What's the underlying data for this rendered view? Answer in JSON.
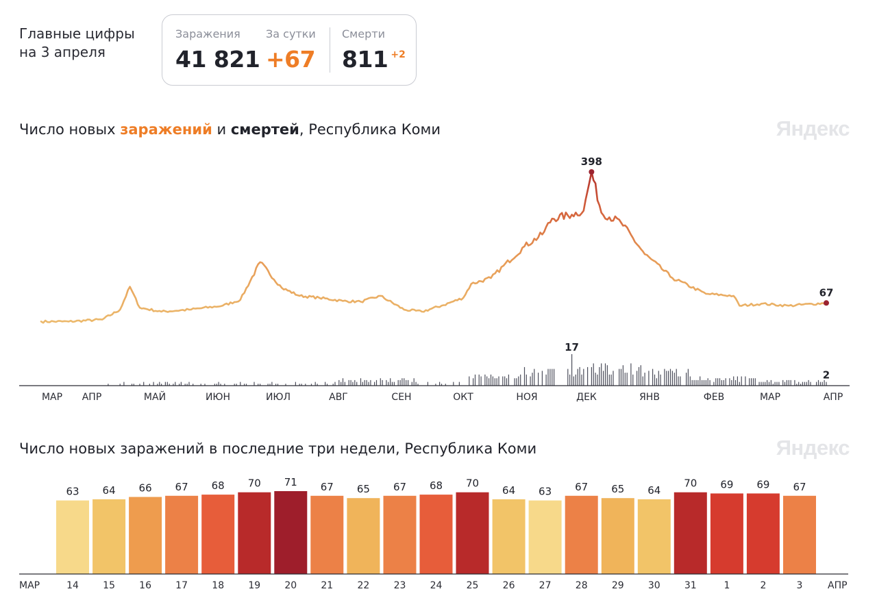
{
  "header": {
    "title_line1": "Главные цифры",
    "title_line2": "на 3 апреля"
  },
  "stats": {
    "infections_label": "Заражения",
    "infections_value": "41 821",
    "daily_label": "За сутки",
    "daily_value": "+67",
    "deaths_label": "Смерти",
    "deaths_value": "811",
    "deaths_delta": "+2"
  },
  "chart1": {
    "title_prefix": "Число новых ",
    "title_infections": "заражений",
    "title_mid": " и ",
    "title_deaths": "смертей",
    "title_suffix": ", Республика Коми",
    "watermark": "Яндекс"
  },
  "chart2": {
    "title": "Число новых заражений в последние три недели, Республика Коми",
    "watermark": "Яндекс"
  },
  "colors": {
    "accent_orange": "#ee7d26",
    "line_low": "#ecbc6e",
    "line_high": "#bf3a2e",
    "deaths_bars": "#4b4c5a",
    "peak_marker": "#9b2330"
  },
  "chart_data": [
    {
      "type": "line",
      "title": "Число новых заражений и смертей, Республика Коми",
      "series": [
        {
          "name": "заражения",
          "x": [
            "2020-03-01",
            "2020-03-15",
            "2020-04-01",
            "2020-04-10",
            "2020-04-15",
            "2020-04-20",
            "2020-05-01",
            "2020-05-15",
            "2020-06-01",
            "2020-06-10",
            "2020-06-20",
            "2020-07-01",
            "2020-07-10",
            "2020-07-20",
            "2020-08-01",
            "2020-08-10",
            "2020-08-20",
            "2020-09-01",
            "2020-09-10",
            "2020-09-20",
            "2020-10-01",
            "2020-10-05",
            "2020-10-15",
            "2020-11-01",
            "2020-11-10",
            "2020-11-15",
            "2020-11-25",
            "2020-12-01",
            "2020-12-05",
            "2020-12-10",
            "2020-12-20",
            "2021-01-01",
            "2021-01-15",
            "2021-02-01",
            "2021-02-15",
            "2021-02-18",
            "2021-03-01",
            "2021-03-15",
            "2021-04-03"
          ],
          "values": [
            20,
            20,
            25,
            50,
            108,
            55,
            45,
            50,
            60,
            75,
            170,
            105,
            85,
            80,
            72,
            70,
            85,
            50,
            45,
            60,
            80,
            115,
            130,
            210,
            240,
            280,
            290,
            300,
            398,
            295,
            270,
            190,
            130,
            90,
            85,
            60,
            65,
            60,
            67
          ]
        }
      ],
      "peak_label": "398",
      "last_label": "67",
      "deaths_peak_label": "17",
      "deaths_last_label": "2",
      "x_tick_labels": [
        "МАР",
        "АПР",
        "МАЙ",
        "ИЮН",
        "ИЮЛ",
        "АВГ",
        "СЕН",
        "ОКТ",
        "НОЯ",
        "ДЕК",
        "ЯНВ",
        "ФЕВ",
        "МАР",
        "АПР"
      ]
    },
    {
      "type": "bar",
      "title": "Число новых заражений в последние три недели, Республика Коми",
      "categories": [
        "14",
        "15",
        "16",
        "17",
        "18",
        "19",
        "20",
        "21",
        "22",
        "23",
        "24",
        "25",
        "26",
        "27",
        "28",
        "29",
        "30",
        "31",
        "1",
        "2",
        "3"
      ],
      "values": [
        63,
        64,
        66,
        67,
        68,
        70,
        71,
        67,
        65,
        67,
        68,
        70,
        64,
        63,
        67,
        65,
        64,
        70,
        69,
        69,
        67
      ],
      "weekend_categories": [
        "14",
        "20",
        "21",
        "27",
        "28",
        "3"
      ],
      "axis_start_label": "МАР",
      "axis_end_label": "АПР",
      "ylim": [
        0,
        71
      ]
    }
  ]
}
